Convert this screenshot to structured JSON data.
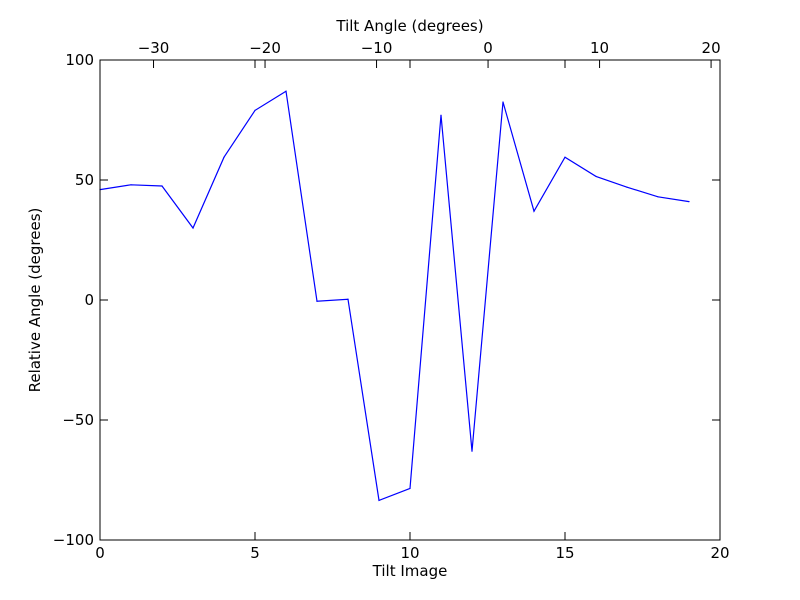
{
  "chart_data": {
    "type": "line",
    "xlabel": "Tilt Image",
    "x2label": "Tilt Angle (degrees)",
    "ylabel": "Relative Angle (degrees)",
    "xlim": [
      0,
      20
    ],
    "ylim": [
      -100,
      100
    ],
    "x2lim": [
      -34.8,
      20.8
    ],
    "x_ticks": [
      0,
      5,
      10,
      15,
      20
    ],
    "x_tick_labels": [
      "0",
      "5",
      "10",
      "15",
      "20"
    ],
    "x2_ticks": [
      -30,
      -20,
      -10,
      0,
      10,
      20
    ],
    "x2_tick_labels": [
      "−30",
      "−20",
      "−10",
      "0",
      "10",
      "20"
    ],
    "y_ticks": [
      -100,
      -50,
      0,
      50,
      100
    ],
    "y_tick_labels": [
      "−100",
      "−50",
      "0",
      "50",
      "100"
    ],
    "grid": false,
    "line_color": "#0000ff",
    "series": [
      {
        "x": [
          0,
          1,
          2,
          3,
          4,
          5,
          6,
          7,
          8,
          9,
          10,
          11,
          12,
          13,
          14,
          15,
          16,
          17,
          18,
          19
        ],
        "y": [
          46,
          48,
          47.5,
          30,
          59.5,
          79,
          87,
          -0.5,
          0.3,
          -83.5,
          -78.5,
          77,
          -63,
          82.5,
          37,
          59.5,
          51.5,
          47,
          43,
          41
        ]
      }
    ]
  }
}
